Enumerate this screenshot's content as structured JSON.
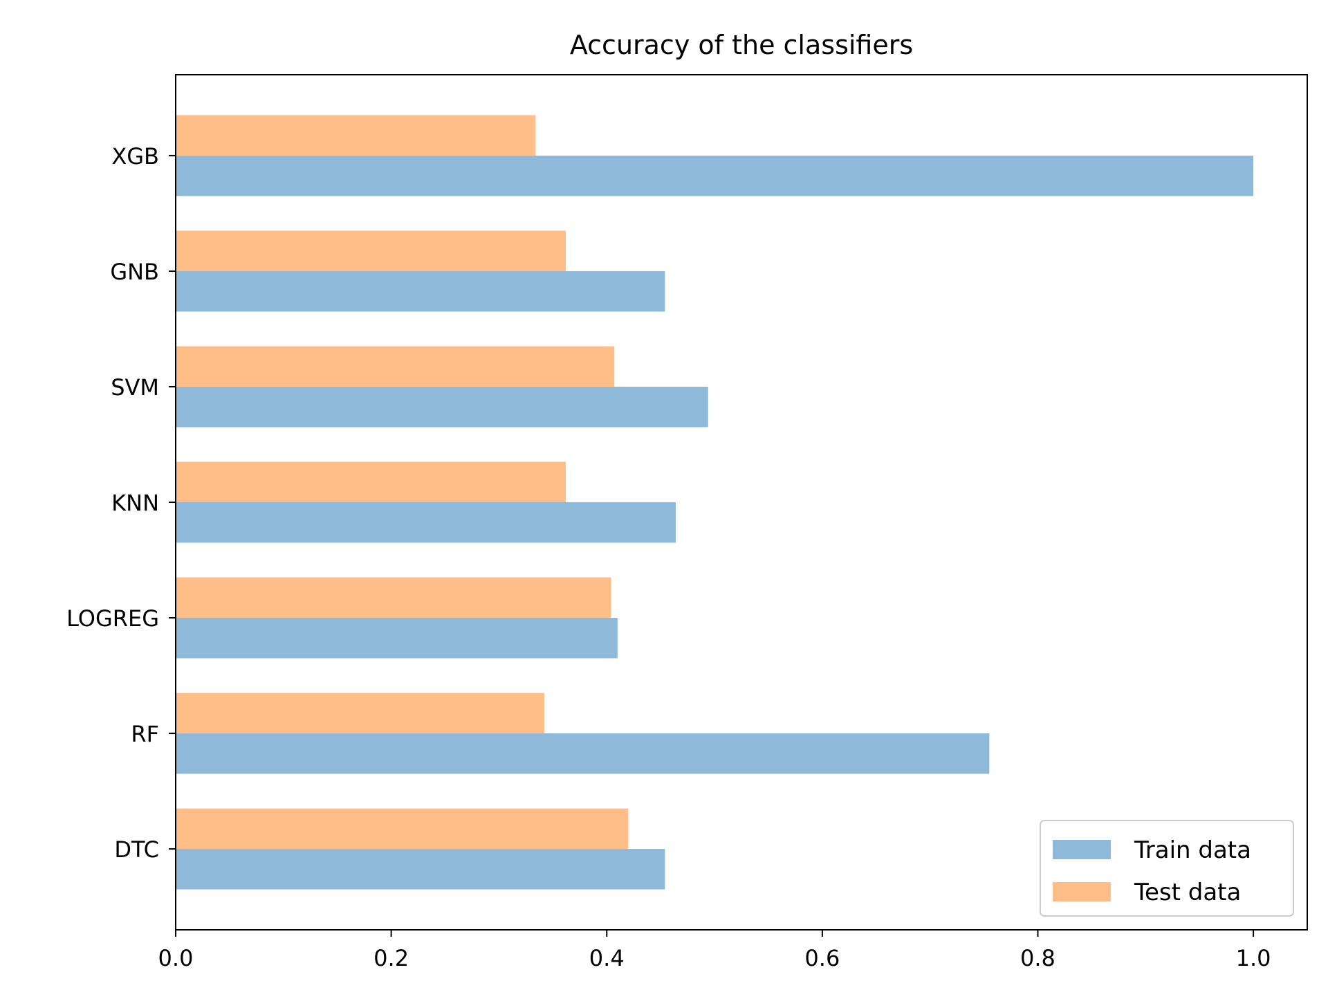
{
  "chart_data": {
    "type": "bar",
    "orientation": "horizontal",
    "title": "Accuracy of the classifiers",
    "xlabel": "",
    "ylabel": "",
    "categories": [
      "DTC",
      "RF",
      "LOGREG",
      "KNN",
      "SVM",
      "GNB",
      "XGB"
    ],
    "series": [
      {
        "name": "Train data",
        "color": "#8fb9d9",
        "values": [
          0.454,
          0.755,
          0.41,
          0.464,
          0.494,
          0.454,
          1.0
        ]
      },
      {
        "name": "Test data",
        "color": "#ffbe87",
        "values": [
          0.42,
          0.342,
          0.404,
          0.362,
          0.407,
          0.362,
          0.334
        ]
      }
    ],
    "xlim": [
      0.0,
      1.05
    ],
    "xticks": [
      0.0,
      0.2,
      0.4,
      0.6,
      0.8,
      1.0
    ],
    "xtick_labels": [
      "0.0",
      "0.2",
      "0.4",
      "0.6",
      "0.8",
      "1.0"
    ],
    "grid": false,
    "legend": {
      "position": "bottom-right",
      "entries": [
        "Train data",
        "Test data"
      ]
    }
  }
}
